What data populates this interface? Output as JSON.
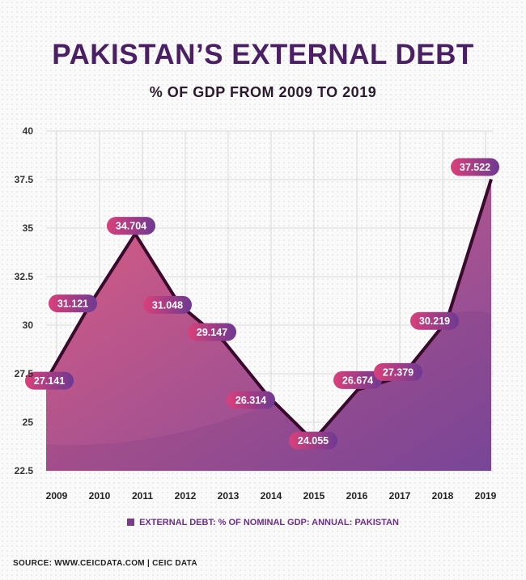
{
  "header": {
    "title": "PAKISTAN’S EXTERNAL DEBT",
    "subtitle": "% OF GDP FROM 2009 TO 2019"
  },
  "chart_data": {
    "type": "area",
    "categories": [
      "2009",
      "2010",
      "2011",
      "2012",
      "2013",
      "2014",
      "2015",
      "2016",
      "2017",
      "2018",
      "2019"
    ],
    "series": [
      {
        "name": "EXTERNAL DEBT: % OF NOMINAL GDP: ANNUAL: PAKISTAN",
        "values": [
          27.141,
          31.121,
          34.704,
          31.048,
          29.147,
          26.314,
          24.055,
          26.674,
          27.379,
          30.219,
          37.522
        ]
      }
    ],
    "data_labels": [
      "27.141",
      "31.121",
      "34.704",
      "31.048",
      "29.147",
      "26.314",
      "24.055",
      "26.674",
      "27.379",
      "30.219",
      "37.522"
    ],
    "y_ticks": [
      "40",
      "37.5",
      "35",
      "32.5",
      "30",
      "27.5",
      "25",
      "22.5"
    ],
    "ylim": [
      22.5,
      40
    ],
    "grid": true,
    "legend_position": "bottom",
    "colors": {
      "fill_start": "#dc5c82",
      "fill_end": "#7d4a9c",
      "line": "#3a0a2c",
      "label_start": "#d9407a",
      "label_end": "#6d3a92"
    }
  },
  "legend": {
    "label": "EXTERNAL DEBT: % OF NOMINAL GDP: ANNUAL: PAKISTAN"
  },
  "footer": {
    "source": "SOURCE: WWW.CEICDATA.COM  |  CEIC DATA"
  }
}
